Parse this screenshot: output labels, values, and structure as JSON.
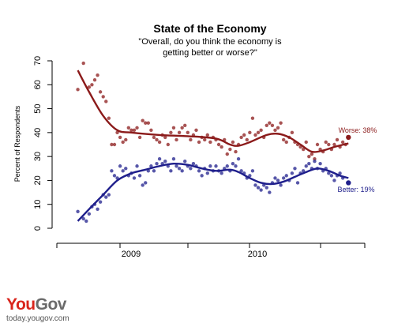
{
  "chart_data": {
    "type": "scatter",
    "title": "State of the Economy",
    "subtitle_lines": [
      "\"Overall, do you think the economy is",
      "getting better or worse?\""
    ],
    "ylabel": "Percent of Respondents",
    "ylim": [
      0,
      70
    ],
    "yticks": [
      0,
      10,
      20,
      30,
      40,
      50,
      60,
      70
    ],
    "x_tick_labels": [
      "2009",
      "2010"
    ],
    "series": [
      {
        "name": "Worse",
        "color": "#8b1a1a",
        "end_label": "Worse: 38%",
        "points": [
          [
            0.01,
            58
          ],
          [
            0.03,
            69
          ],
          [
            0.05,
            59
          ],
          [
            0.06,
            60
          ],
          [
            0.07,
            62
          ],
          [
            0.08,
            64
          ],
          [
            0.09,
            57
          ],
          [
            0.1,
            55
          ],
          [
            0.11,
            53
          ],
          [
            0.12,
            46
          ],
          [
            0.13,
            35
          ],
          [
            0.14,
            35
          ],
          [
            0.15,
            40
          ],
          [
            0.16,
            38
          ],
          [
            0.17,
            36
          ],
          [
            0.18,
            37
          ],
          [
            0.19,
            42
          ],
          [
            0.2,
            41
          ],
          [
            0.21,
            41
          ],
          [
            0.22,
            42
          ],
          [
            0.23,
            38
          ],
          [
            0.24,
            45
          ],
          [
            0.25,
            44
          ],
          [
            0.26,
            44
          ],
          [
            0.27,
            41
          ],
          [
            0.28,
            38
          ],
          [
            0.29,
            37
          ],
          [
            0.3,
            36
          ],
          [
            0.31,
            39
          ],
          [
            0.32,
            38
          ],
          [
            0.33,
            35
          ],
          [
            0.34,
            40
          ],
          [
            0.35,
            42
          ],
          [
            0.36,
            37
          ],
          [
            0.37,
            40
          ],
          [
            0.38,
            42
          ],
          [
            0.39,
            43
          ],
          [
            0.4,
            40
          ],
          [
            0.41,
            37
          ],
          [
            0.42,
            39
          ],
          [
            0.43,
            41
          ],
          [
            0.44,
            36
          ],
          [
            0.45,
            38
          ],
          [
            0.46,
            37
          ],
          [
            0.47,
            39
          ],
          [
            0.48,
            36
          ],
          [
            0.49,
            38
          ],
          [
            0.5,
            37
          ],
          [
            0.51,
            35
          ],
          [
            0.52,
            34
          ],
          [
            0.53,
            37
          ],
          [
            0.54,
            31
          ],
          [
            0.55,
            33
          ],
          [
            0.56,
            36
          ],
          [
            0.57,
            32
          ],
          [
            0.58,
            35
          ],
          [
            0.59,
            38
          ],
          [
            0.6,
            39
          ],
          [
            0.61,
            37
          ],
          [
            0.62,
            40
          ],
          [
            0.63,
            46
          ],
          [
            0.64,
            39
          ],
          [
            0.65,
            40
          ],
          [
            0.66,
            41
          ],
          [
            0.67,
            38
          ],
          [
            0.68,
            43
          ],
          [
            0.69,
            44
          ],
          [
            0.7,
            43
          ],
          [
            0.71,
            41
          ],
          [
            0.72,
            42
          ],
          [
            0.73,
            44
          ],
          [
            0.74,
            37
          ],
          [
            0.75,
            36
          ],
          [
            0.76,
            38
          ],
          [
            0.77,
            40
          ],
          [
            0.78,
            36
          ],
          [
            0.79,
            35
          ],
          [
            0.8,
            34
          ],
          [
            0.81,
            33
          ],
          [
            0.82,
            36
          ],
          [
            0.83,
            30
          ],
          [
            0.84,
            31
          ],
          [
            0.85,
            29
          ],
          [
            0.86,
            35
          ],
          [
            0.87,
            33
          ],
          [
            0.88,
            32
          ],
          [
            0.89,
            36
          ],
          [
            0.9,
            35
          ],
          [
            0.91,
            33
          ],
          [
            0.92,
            35
          ],
          [
            0.93,
            37
          ],
          [
            0.94,
            34
          ],
          [
            0.95,
            36
          ],
          [
            0.96,
            35
          ],
          [
            0.97,
            38
          ]
        ],
        "smooth": [
          [
            0.01,
            66
          ],
          [
            0.05,
            57
          ],
          [
            0.1,
            47
          ],
          [
            0.15,
            41
          ],
          [
            0.2,
            40
          ],
          [
            0.3,
            39
          ],
          [
            0.4,
            38.5
          ],
          [
            0.5,
            37.5
          ],
          [
            0.55,
            35
          ],
          [
            0.58,
            34.5
          ],
          [
            0.62,
            36
          ],
          [
            0.68,
            39
          ],
          [
            0.72,
            39.5
          ],
          [
            0.76,
            38
          ],
          [
            0.8,
            35
          ],
          [
            0.84,
            32
          ],
          [
            0.88,
            32.5
          ],
          [
            0.92,
            34
          ],
          [
            0.97,
            35.5
          ]
        ]
      },
      {
        "name": "Better",
        "color": "#1f1f8c",
        "end_label": "Better: 19%",
        "points": [
          [
            0.01,
            7
          ],
          [
            0.03,
            4
          ],
          [
            0.04,
            3
          ],
          [
            0.05,
            6
          ],
          [
            0.06,
            9
          ],
          [
            0.07,
            10
          ],
          [
            0.08,
            8
          ],
          [
            0.09,
            11
          ],
          [
            0.1,
            14
          ],
          [
            0.11,
            13
          ],
          [
            0.12,
            14
          ],
          [
            0.13,
            24
          ],
          [
            0.14,
            22
          ],
          [
            0.15,
            21
          ],
          [
            0.16,
            26
          ],
          [
            0.17,
            24
          ],
          [
            0.18,
            25
          ],
          [
            0.19,
            22
          ],
          [
            0.2,
            23
          ],
          [
            0.21,
            21
          ],
          [
            0.22,
            26
          ],
          [
            0.23,
            22
          ],
          [
            0.24,
            18
          ],
          [
            0.25,
            19
          ],
          [
            0.26,
            24
          ],
          [
            0.27,
            26
          ],
          [
            0.28,
            24
          ],
          [
            0.29,
            27
          ],
          [
            0.3,
            29
          ],
          [
            0.31,
            27
          ],
          [
            0.32,
            28
          ],
          [
            0.33,
            26
          ],
          [
            0.34,
            24
          ],
          [
            0.35,
            29
          ],
          [
            0.36,
            26
          ],
          [
            0.37,
            25
          ],
          [
            0.38,
            24
          ],
          [
            0.39,
            28
          ],
          [
            0.4,
            26
          ],
          [
            0.41,
            25
          ],
          [
            0.42,
            27
          ],
          [
            0.43,
            26
          ],
          [
            0.44,
            24
          ],
          [
            0.45,
            22
          ],
          [
            0.46,
            25
          ],
          [
            0.47,
            23
          ],
          [
            0.48,
            26
          ],
          [
            0.49,
            24
          ],
          [
            0.5,
            26
          ],
          [
            0.51,
            24
          ],
          [
            0.52,
            23
          ],
          [
            0.53,
            25
          ],
          [
            0.54,
            26
          ],
          [
            0.55,
            24
          ],
          [
            0.56,
            27
          ],
          [
            0.57,
            26
          ],
          [
            0.58,
            29
          ],
          [
            0.59,
            24
          ],
          [
            0.6,
            23
          ],
          [
            0.61,
            21
          ],
          [
            0.62,
            22
          ],
          [
            0.63,
            24
          ],
          [
            0.64,
            18
          ],
          [
            0.65,
            17
          ],
          [
            0.66,
            16
          ],
          [
            0.67,
            18
          ],
          [
            0.68,
            17
          ],
          [
            0.69,
            15
          ],
          [
            0.7,
            19
          ],
          [
            0.71,
            21
          ],
          [
            0.72,
            20
          ],
          [
            0.73,
            18
          ],
          [
            0.74,
            21
          ],
          [
            0.75,
            22
          ],
          [
            0.76,
            20
          ],
          [
            0.77,
            23
          ],
          [
            0.78,
            25
          ],
          [
            0.79,
            19
          ],
          [
            0.8,
            23
          ],
          [
            0.81,
            24
          ],
          [
            0.82,
            26
          ],
          [
            0.83,
            27
          ],
          [
            0.84,
            25
          ],
          [
            0.85,
            28
          ],
          [
            0.86,
            25
          ],
          [
            0.87,
            27
          ],
          [
            0.88,
            24
          ],
          [
            0.89,
            25
          ],
          [
            0.9,
            23
          ],
          [
            0.91,
            22
          ],
          [
            0.92,
            20
          ],
          [
            0.93,
            22
          ],
          [
            0.94,
            23
          ],
          [
            0.95,
            21
          ],
          [
            0.97,
            19
          ]
        ],
        "smooth": [
          [
            0.01,
            3
          ],
          [
            0.05,
            8
          ],
          [
            0.1,
            14
          ],
          [
            0.15,
            20
          ],
          [
            0.2,
            23
          ],
          [
            0.25,
            24.5
          ],
          [
            0.3,
            26
          ],
          [
            0.35,
            27
          ],
          [
            0.4,
            26.5
          ],
          [
            0.45,
            25
          ],
          [
            0.5,
            24
          ],
          [
            0.55,
            24.5
          ],
          [
            0.58,
            23.5
          ],
          [
            0.62,
            21
          ],
          [
            0.66,
            19
          ],
          [
            0.7,
            18.5
          ],
          [
            0.74,
            19.5
          ],
          [
            0.78,
            21.5
          ],
          [
            0.82,
            23.5
          ],
          [
            0.86,
            25
          ],
          [
            0.9,
            24
          ],
          [
            0.94,
            22
          ],
          [
            0.97,
            21
          ]
        ]
      }
    ]
  },
  "branding": {
    "logo_you": "You",
    "logo_gov": "Gov",
    "url": "today.yougov.com"
  }
}
